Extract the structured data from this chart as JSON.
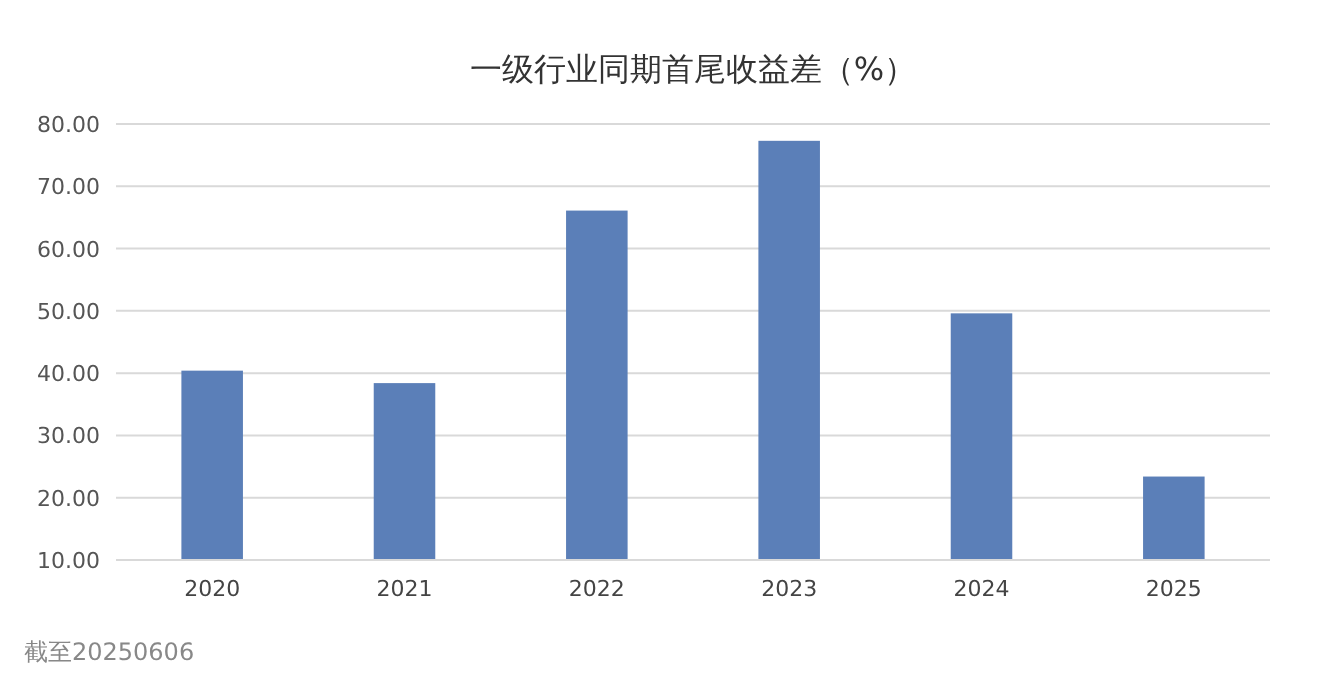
{
  "chart_data": {
    "type": "bar",
    "title": "一级行业同期首尾收益差（%）",
    "categories": [
      "2020",
      "2021",
      "2022",
      "2023",
      "2024",
      "2025"
    ],
    "values": [
      40.4,
      38.4,
      66.1,
      77.3,
      49.6,
      23.4
    ],
    "color": "#5b7fb8",
    "ylim": [
      10,
      80
    ],
    "yticks": [
      {
        "value": 10,
        "label": "10.00"
      },
      {
        "value": 20,
        "label": "20.00"
      },
      {
        "value": 30,
        "label": "30.00"
      },
      {
        "value": 40,
        "label": "40.00"
      },
      {
        "value": 50,
        "label": "50.00"
      },
      {
        "value": 60,
        "label": "60.00"
      },
      {
        "value": 70,
        "label": "70.00"
      },
      {
        "value": 80,
        "label": "80.00"
      }
    ],
    "grid": "y",
    "annotations": [
      "截至20250606"
    ]
  }
}
